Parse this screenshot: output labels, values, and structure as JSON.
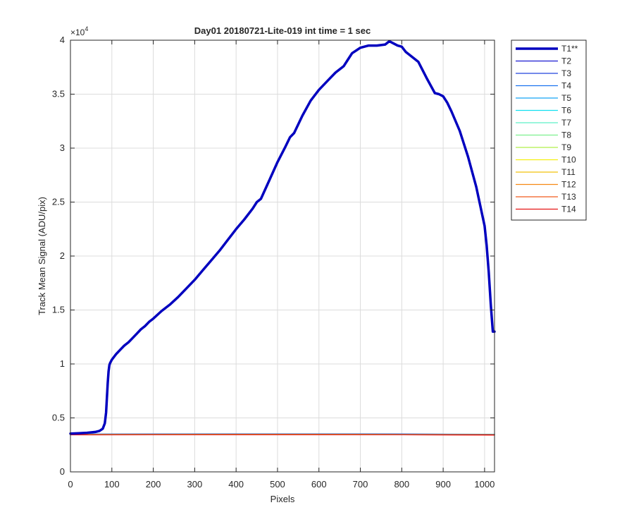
{
  "chart_data": {
    "type": "line",
    "title": "Day01 20180721-Lite-019 int time = 1 sec",
    "xlabel": "Pixels",
    "ylabel": "Track Mean Signal (ADU/pix)",
    "exponent_label": "×10",
    "exponent_power": "4",
    "xlim": [
      0,
      1024
    ],
    "ylim": [
      0,
      40000
    ],
    "xticks": [
      0,
      100,
      200,
      300,
      400,
      500,
      600,
      700,
      800,
      900,
      1000
    ],
    "xtick_labels": [
      "0",
      "100",
      "200",
      "300",
      "400",
      "500",
      "600",
      "700",
      "800",
      "900",
      "1000"
    ],
    "yticks": [
      0,
      5000,
      10000,
      15000,
      20000,
      25000,
      30000,
      35000,
      40000
    ],
    "ytick_labels": [
      "0",
      "0.5",
      "1",
      "1.5",
      "2",
      "2.5",
      "3",
      "3.5",
      "4"
    ],
    "grid": true,
    "legend_position": "outside-top-right",
    "series": [
      {
        "name": "T1**",
        "color": "#0000bf",
        "bold": true,
        "x": [
          0,
          20,
          40,
          60,
          70,
          78,
          83,
          86,
          88,
          90,
          92,
          94,
          96,
          100,
          110,
          120,
          130,
          140,
          150,
          160,
          170,
          180,
          190,
          200,
          220,
          240,
          260,
          280,
          300,
          320,
          340,
          360,
          380,
          400,
          420,
          440,
          450,
          460,
          480,
          500,
          520,
          530,
          540,
          560,
          580,
          600,
          620,
          640,
          660,
          670,
          680,
          700,
          720,
          740,
          760,
          770,
          780,
          790,
          800,
          810,
          820,
          840,
          860,
          880,
          890,
          900,
          910,
          920,
          940,
          960,
          980,
          1000,
          1005,
          1010,
          1015,
          1020,
          1024
        ],
        "y": [
          3550,
          3580,
          3620,
          3700,
          3800,
          4000,
          4500,
          5500,
          6800,
          8200,
          9300,
          9900,
          10100,
          10400,
          10900,
          11300,
          11700,
          12000,
          12400,
          12800,
          13200,
          13500,
          13900,
          14200,
          14900,
          15500,
          16200,
          17000,
          17800,
          18700,
          19600,
          20500,
          21500,
          22500,
          23400,
          24400,
          25000,
          25300,
          27000,
          28700,
          30200,
          31000,
          31400,
          33000,
          34400,
          35400,
          36200,
          37000,
          37600,
          38200,
          38800,
          39300,
          39500,
          39500,
          39600,
          39900,
          39700,
          39500,
          39400,
          38900,
          38600,
          38000,
          36500,
          35100,
          35000,
          34800,
          34200,
          33400,
          31600,
          29200,
          26400,
          22800,
          21000,
          18500,
          15500,
          13000,
          13000
        ]
      },
      {
        "name": "T2",
        "color": "#1a1ad1",
        "x": [
          0,
          200,
          400,
          600,
          800,
          1000,
          1024
        ],
        "y": [
          3500,
          3510,
          3520,
          3520,
          3510,
          3490,
          3480
        ]
      },
      {
        "name": "T3",
        "color": "#2045dd",
        "x": [
          0,
          200,
          400,
          600,
          800,
          1000,
          1024
        ],
        "y": [
          3490,
          3500,
          3510,
          3510,
          3500,
          3480,
          3470
        ]
      },
      {
        "name": "T4",
        "color": "#1a73f0",
        "x": [
          0,
          200,
          400,
          600,
          800,
          1000,
          1024
        ],
        "y": [
          3480,
          3490,
          3500,
          3500,
          3490,
          3470,
          3460
        ]
      },
      {
        "name": "T5",
        "color": "#14a5f5",
        "x": [
          0,
          200,
          400,
          600,
          800,
          1000,
          1024
        ],
        "y": [
          3470,
          3480,
          3490,
          3490,
          3480,
          3460,
          3450
        ]
      },
      {
        "name": "T6",
        "color": "#10e0f0",
        "x": [
          0,
          200,
          400,
          600,
          800,
          1000,
          1024
        ],
        "y": [
          3470,
          3475,
          3485,
          3485,
          3475,
          3455,
          3445
        ]
      },
      {
        "name": "T7",
        "color": "#5ef0c8",
        "x": [
          0,
          200,
          400,
          600,
          800,
          1000,
          1024
        ],
        "y": [
          3465,
          3470,
          3480,
          3480,
          3470,
          3450,
          3440
        ]
      },
      {
        "name": "T8",
        "color": "#7ef08e",
        "x": [
          0,
          200,
          400,
          600,
          800,
          1000,
          1024
        ],
        "y": [
          3460,
          3470,
          3475,
          3475,
          3465,
          3450,
          3440
        ]
      },
      {
        "name": "T9",
        "color": "#b0f04a",
        "x": [
          0,
          200,
          400,
          600,
          800,
          1000,
          1024
        ],
        "y": [
          3455,
          3465,
          3470,
          3470,
          3460,
          3445,
          3435
        ]
      },
      {
        "name": "T10",
        "color": "#f5f010",
        "x": [
          0,
          200,
          400,
          600,
          800,
          1000,
          1024
        ],
        "y": [
          3450,
          3460,
          3465,
          3465,
          3455,
          3440,
          3430
        ]
      },
      {
        "name": "T11",
        "color": "#f2c20a",
        "x": [
          0,
          200,
          400,
          600,
          800,
          1000,
          1024
        ],
        "y": [
          3445,
          3455,
          3460,
          3460,
          3450,
          3435,
          3425
        ]
      },
      {
        "name": "T12",
        "color": "#f58a14",
        "x": [
          0,
          200,
          400,
          600,
          800,
          1000,
          1024
        ],
        "y": [
          3440,
          3450,
          3455,
          3455,
          3445,
          3430,
          3420
        ]
      },
      {
        "name": "T13",
        "color": "#f25a1e",
        "x": [
          0,
          200,
          400,
          600,
          800,
          1000,
          1024
        ],
        "y": [
          3435,
          3445,
          3450,
          3450,
          3440,
          3425,
          3415
        ]
      },
      {
        "name": "T14",
        "color": "#e61414",
        "x": [
          0,
          200,
          400,
          600,
          800,
          1000,
          1024
        ],
        "y": [
          3430,
          3440,
          3445,
          3445,
          3435,
          3420,
          3410
        ]
      }
    ]
  }
}
